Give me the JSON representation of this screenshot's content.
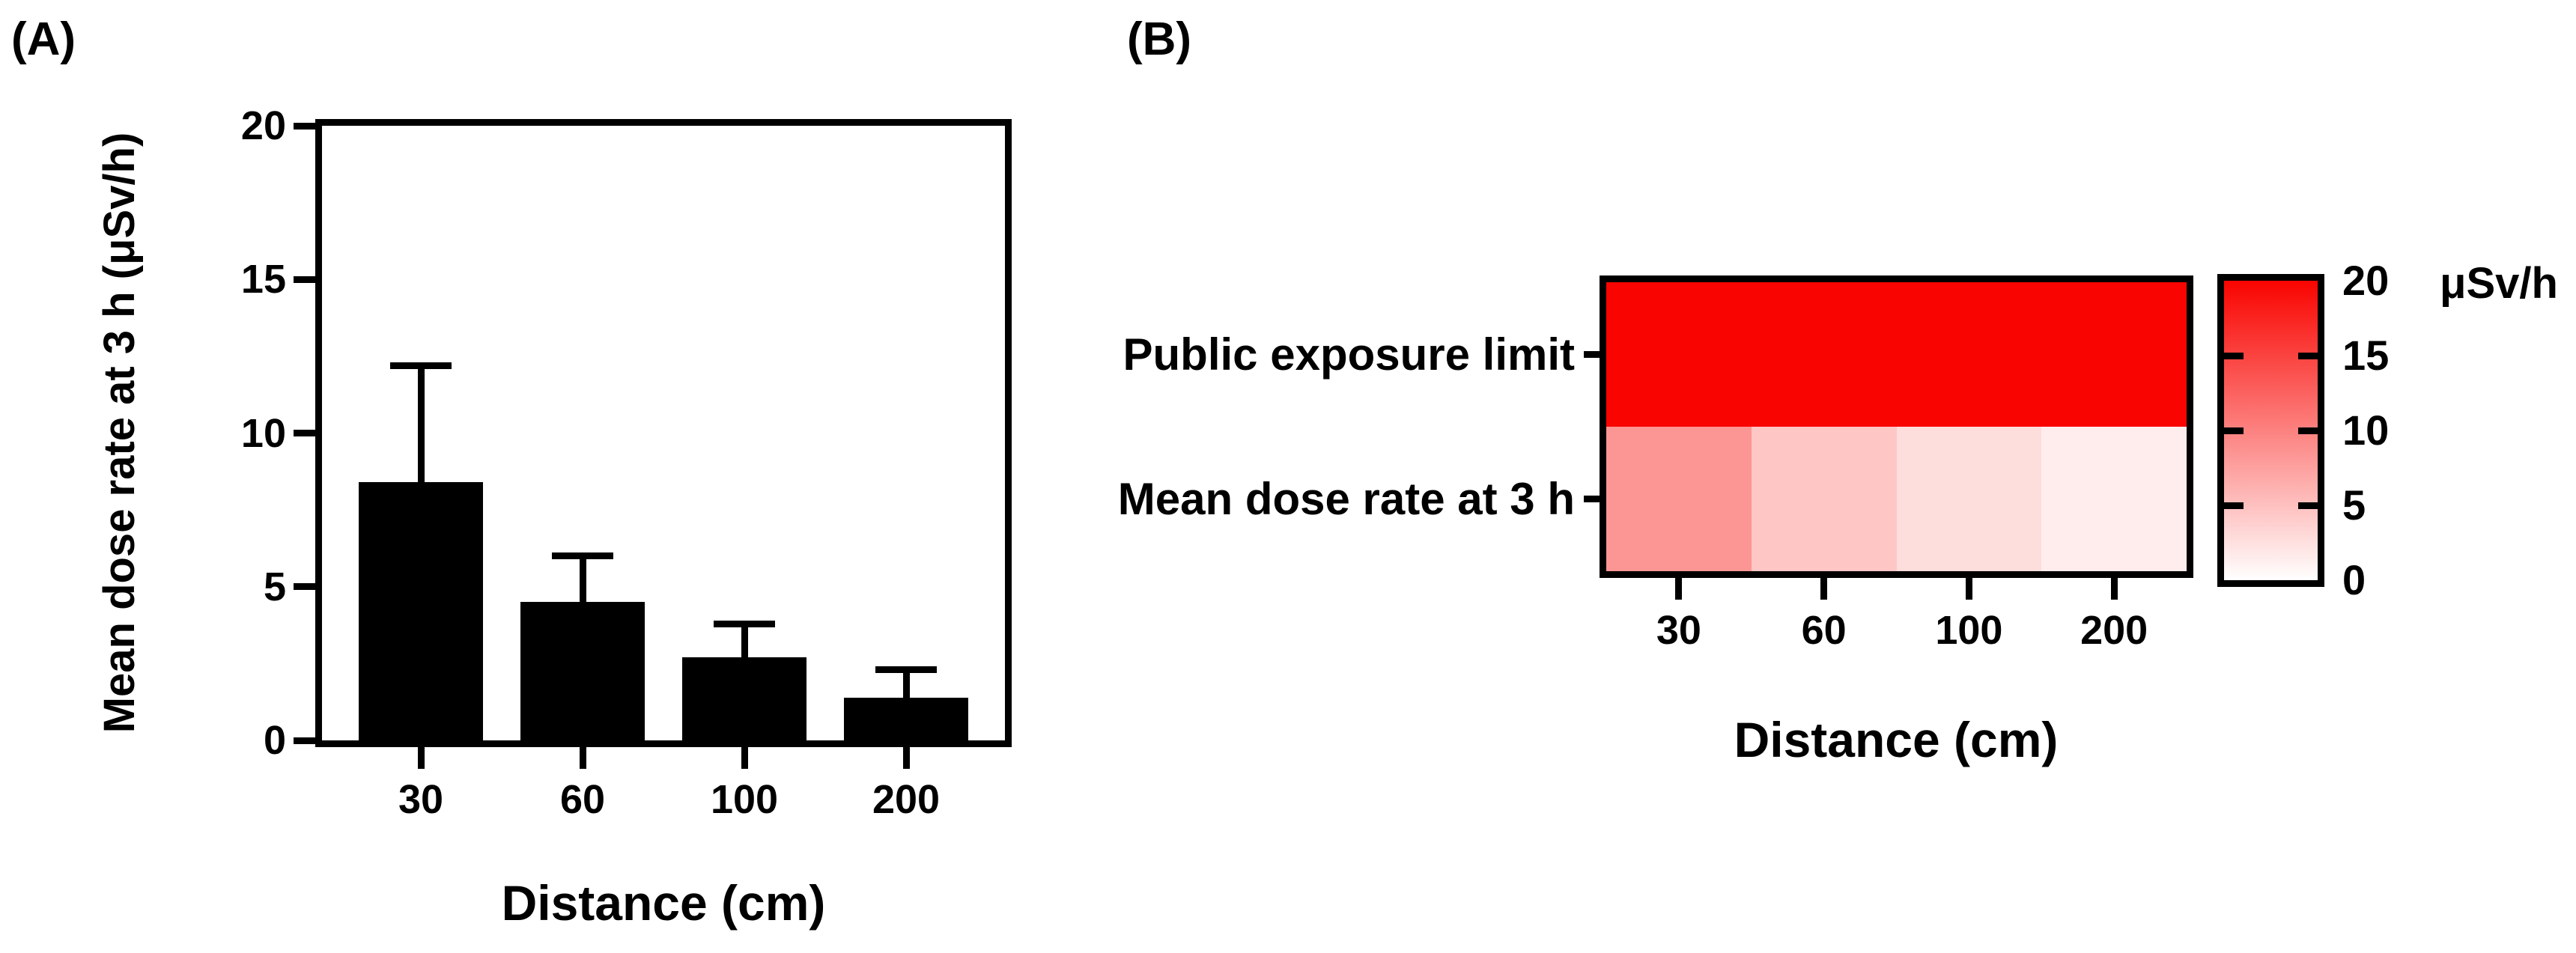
{
  "figure": {
    "background": "#ffffff",
    "text_color": "#000000"
  },
  "chart_data": [
    {
      "id": "panel-a",
      "type": "bar",
      "panel_label": "(A)",
      "categories": [
        "30",
        "60",
        "100",
        "200"
      ],
      "values": [
        8.4,
        4.5,
        2.7,
        1.4
      ],
      "errors_upper_sd": [
        3.8,
        1.5,
        1.1,
        0.9
      ],
      "error_bar_tops": [
        12.2,
        6.0,
        3.8,
        2.3
      ],
      "xlabel": "Distance (cm)",
      "ylabel": "Mean dose rate at 3 h (μSv/h)",
      "ylim": [
        0,
        20
      ],
      "yticks": [
        0,
        5,
        10,
        15,
        20
      ],
      "bar_color": "#000000",
      "grid": false,
      "legend_position": "none"
    },
    {
      "id": "panel-b",
      "type": "heatmap",
      "panel_label": "(B)",
      "rows": [
        "Public exposure limit",
        "Mean dose rate at 3 h"
      ],
      "columns": [
        "30",
        "60",
        "100",
        "200"
      ],
      "values": [
        [
          20,
          20,
          20,
          20
        ],
        [
          8.4,
          4.5,
          2.7,
          1.4
        ]
      ],
      "xlabel": "Distance (cm)",
      "colorbar": {
        "unit": "μSv/h",
        "ticks": [
          20,
          15,
          10,
          5,
          0
        ],
        "min": 0,
        "max": 20,
        "min_color": "#FFFFFF",
        "max_color": "#F90400"
      },
      "legend_position": "right",
      "grid": false
    }
  ]
}
